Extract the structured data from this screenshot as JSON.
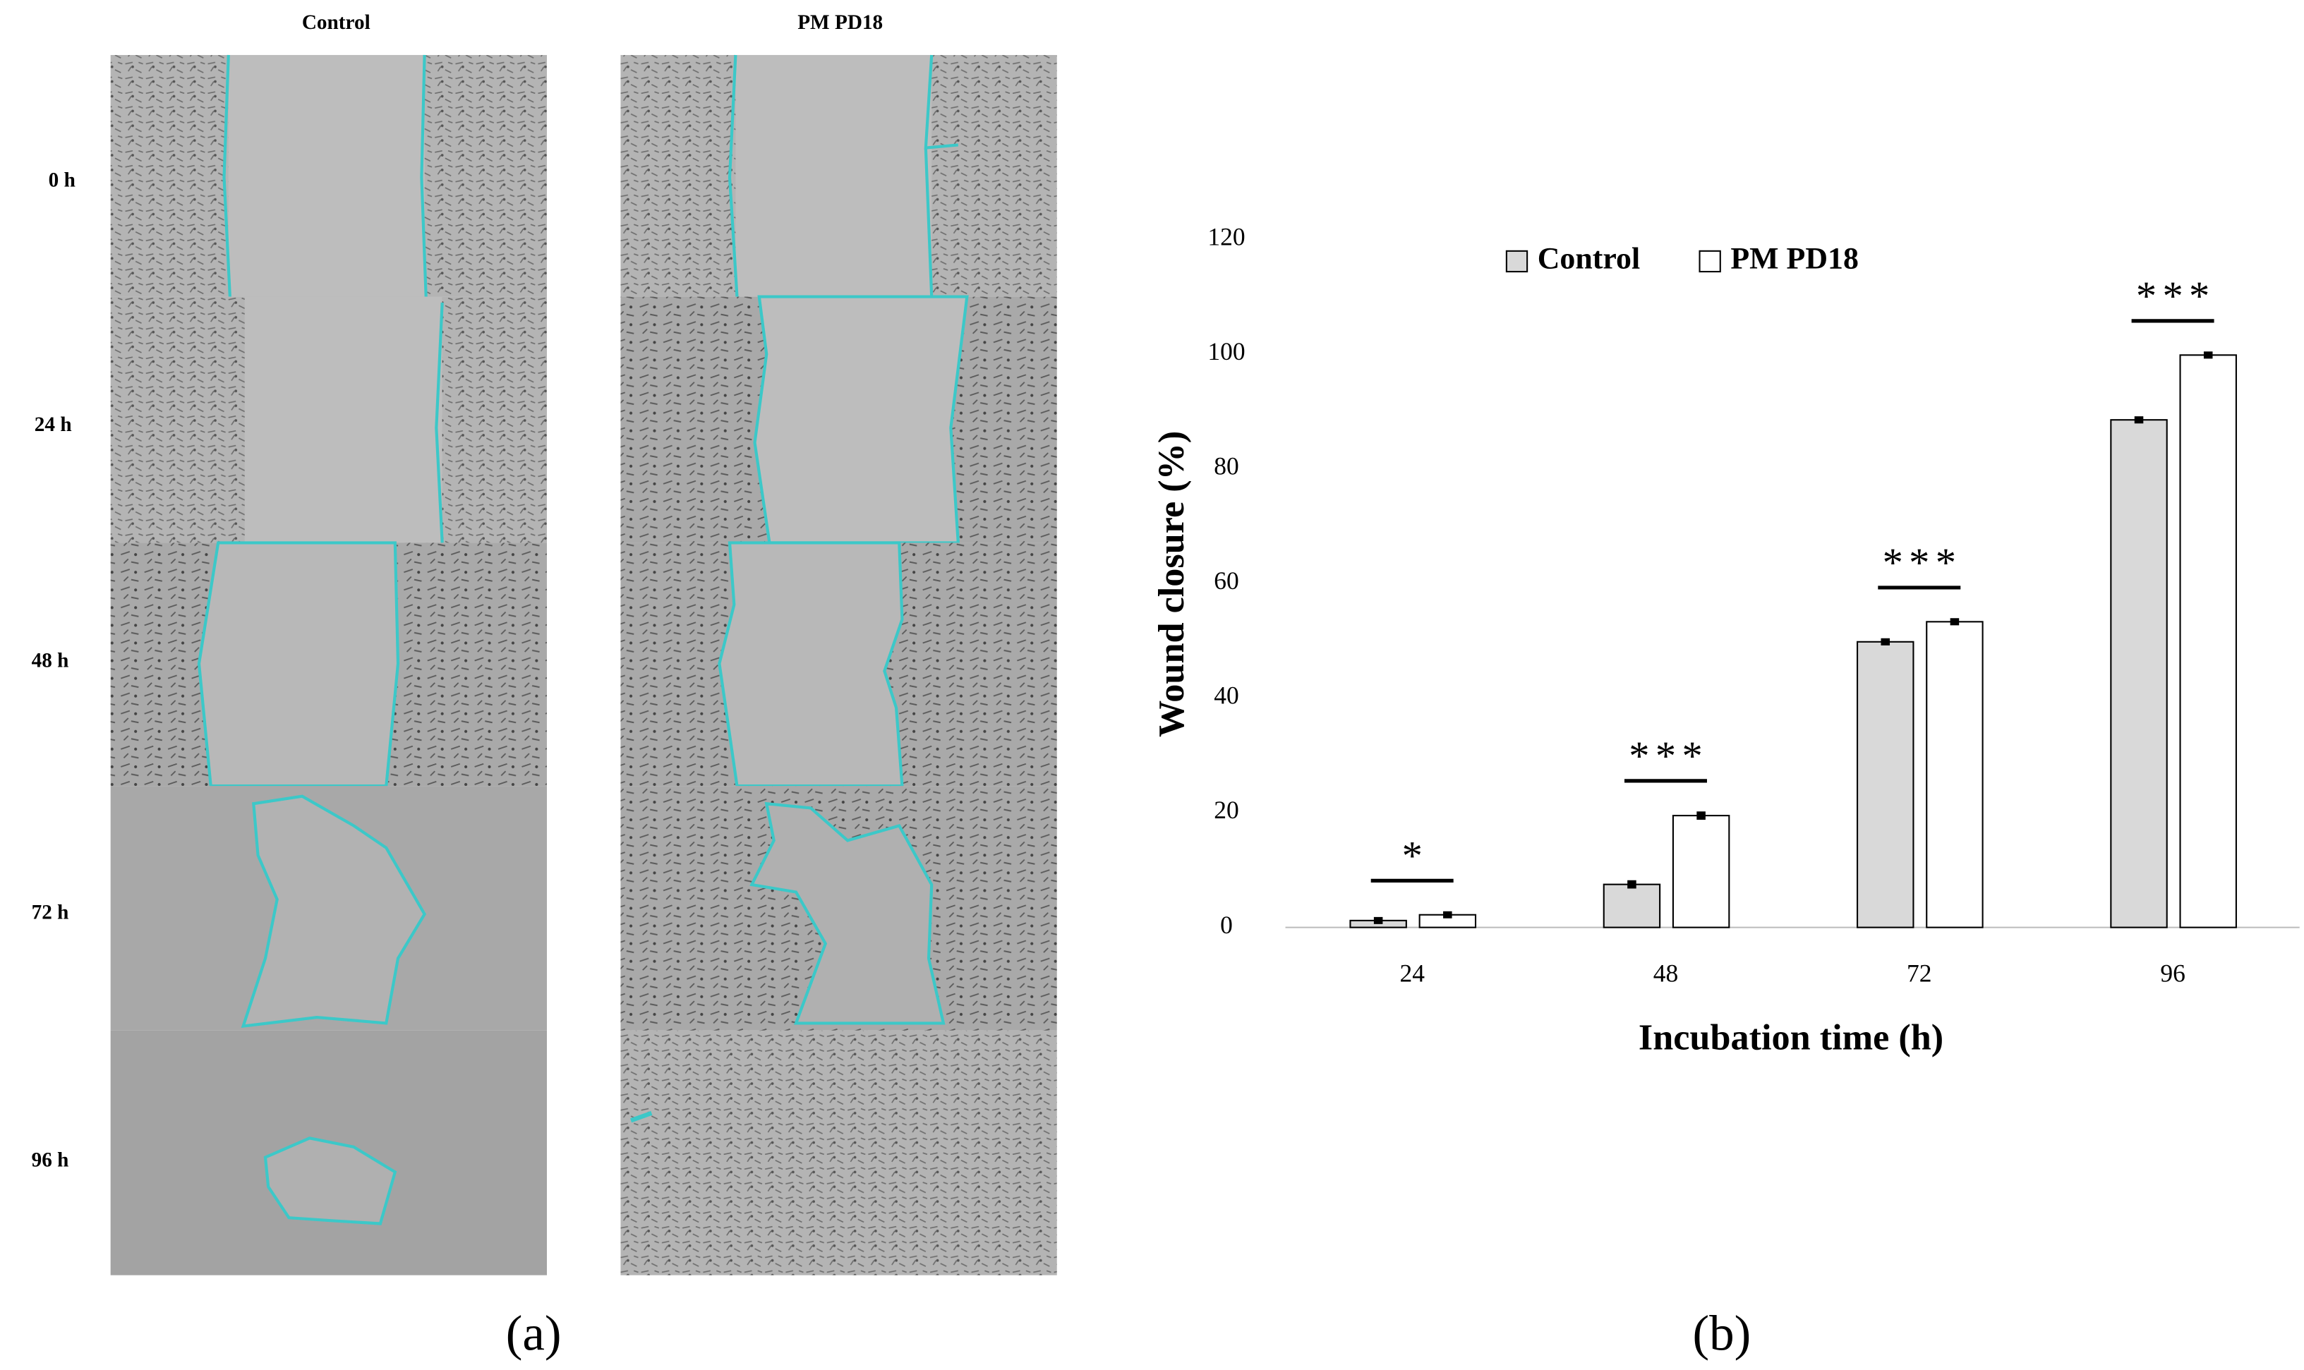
{
  "panel_a": {
    "column_labels": [
      "Control",
      "PM PD18"
    ],
    "row_labels": [
      "0 h",
      "24 h",
      "48 h",
      "72 h",
      "96 h"
    ],
    "caption": "(a)"
  },
  "chart_data": {
    "type": "bar",
    "caption": "(b)",
    "x_label": "Incubation time (h)",
    "y_label": "Wound closure (%)",
    "categories": [
      "24",
      "48",
      "72",
      "96"
    ],
    "series": [
      {
        "name": "Control",
        "color": "#d9d9d9",
        "values": [
          1.2,
          7.5,
          49.8,
          88.5
        ],
        "errors": [
          0.3,
          0.4,
          0.3,
          0.3
        ]
      },
      {
        "name": "PM PD18",
        "color": "#ffffff",
        "values": [
          2.2,
          19.5,
          53.3,
          99.8
        ],
        "errors": [
          0.3,
          0.4,
          0.3,
          0.3
        ]
      }
    ],
    "significance": [
      "*",
      "***",
      "***",
      "***"
    ],
    "ylim": [
      0,
      120
    ],
    "yticks": [
      0,
      20,
      40,
      60,
      80,
      100,
      120
    ],
    "grid": false,
    "legend": "top"
  }
}
